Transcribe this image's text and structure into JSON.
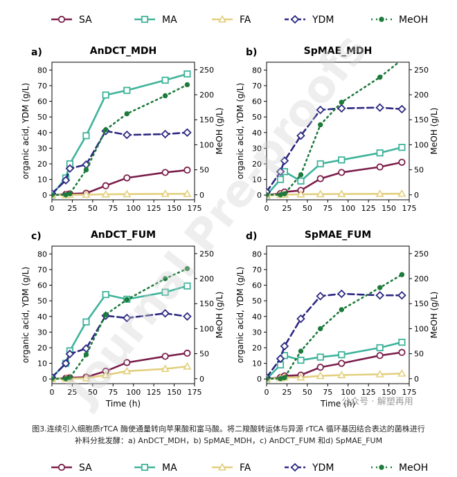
{
  "legend": {
    "items": [
      {
        "key": "SA",
        "label": "SA",
        "color": "#7a1d4a",
        "marker": "circle",
        "dash": "solid"
      },
      {
        "key": "MA",
        "label": "MA",
        "color": "#3db39a",
        "marker": "square",
        "dash": "solid"
      },
      {
        "key": "FA",
        "label": "FA",
        "color": "#e2cf7d",
        "marker": "triangle",
        "dash": "solid"
      },
      {
        "key": "YDM",
        "label": "YDM",
        "color": "#2b2780",
        "marker": "diamond",
        "dash": "dash"
      },
      {
        "key": "MeOH",
        "label": "MeOH",
        "color": "#1c7a3a",
        "marker": "dot",
        "dash": "dot"
      }
    ]
  },
  "watermark": {
    "text": "Journal Pre-proofs"
  },
  "wechat": {
    "text": "公众号 · 解塑再用"
  },
  "caption": {
    "line1": "图3.连续引入细胞质rTCA 酶使通量转向苹果酸和富马酸。将二羧酸转运体与异源 rTCA 循环基因结合表达的菌株进行",
    "line2": "补料分批发酵：a) AnDCT_MDH，b) SpMAE_MDH，c) AnDCT_FUM 和d) SpMAE_FUM"
  },
  "chart_data": [
    {
      "type": "line",
      "panel": "a)",
      "title": "AnDCT_MDH",
      "xlabel": "",
      "ylabel": "organic acid, YDM (g/L)",
      "y2label": "MeOH (g/L)",
      "xlim": [
        0,
        175
      ],
      "ylim": [
        -3,
        85
      ],
      "y2lim": [
        -10,
        265
      ],
      "xticks": [
        0,
        25,
        50,
        75,
        100,
        125,
        150,
        175
      ],
      "yticks": [
        0,
        10,
        20,
        30,
        40,
        50,
        60,
        70,
        80
      ],
      "y2ticks": [
        0,
        50,
        100,
        150,
        200,
        250
      ],
      "series": [
        {
          "name": "SA",
          "x": [
            0,
            17,
            22,
            42,
            66,
            92,
            139,
            166
          ],
          "values": [
            0,
            0.5,
            0.8,
            1.2,
            6,
            11,
            14.5,
            16
          ]
        },
        {
          "name": "MA",
          "x": [
            0,
            17,
            22,
            42,
            66,
            92,
            139,
            166
          ],
          "values": [
            0,
            11,
            20,
            38,
            64,
            67,
            73.5,
            77.5
          ]
        },
        {
          "name": "FA",
          "x": [
            0,
            17,
            22,
            42,
            66,
            92,
            139,
            166
          ],
          "values": [
            0,
            0,
            0.2,
            0.3,
            0.5,
            0.6,
            0.8,
            0.8
          ]
        },
        {
          "name": "YDM",
          "x": [
            0,
            17,
            22,
            42,
            66,
            92,
            139,
            166
          ],
          "values": [
            1,
            9.5,
            17,
            19.5,
            41,
            38.5,
            39,
            40
          ]
        },
        {
          "name": "MeOH",
          "axis": "y2",
          "x": [
            0,
            17,
            22,
            42,
            66,
            92,
            139,
            166
          ],
          "values": [
            0,
            0,
            2,
            50,
            130,
            162,
            198,
            220
          ]
        }
      ]
    },
    {
      "type": "line",
      "panel": "b)",
      "title": "SpMAE_MDH",
      "xlabel": "",
      "ylabel": "organic acid, YDM (g/L)",
      "y2label": "MeOH (g/L)",
      "xlim": [
        0,
        175
      ],
      "ylim": [
        -3,
        85
      ],
      "y2lim": [
        -10,
        265
      ],
      "xticks": [
        0,
        25,
        50,
        75,
        100,
        125,
        150,
        175
      ],
      "yticks": [
        0,
        10,
        20,
        30,
        40,
        50,
        60,
        70,
        80
      ],
      "y2ticks": [
        0,
        50,
        100,
        150,
        200,
        250
      ],
      "series": [
        {
          "name": "SA",
          "x": [
            0,
            17,
            22,
            42,
            66,
            92,
            139,
            166
          ],
          "values": [
            0,
            1,
            2,
            3,
            10.5,
            14.5,
            18,
            21
          ]
        },
        {
          "name": "MA",
          "x": [
            0,
            17,
            22,
            42,
            66,
            92,
            139,
            166
          ],
          "values": [
            0,
            10,
            15,
            9,
            20,
            22.5,
            27,
            30.5
          ]
        },
        {
          "name": "FA",
          "x": [
            0,
            17,
            22,
            42,
            66,
            92,
            139,
            166
          ],
          "values": [
            0,
            0.2,
            0.3,
            0.5,
            0.6,
            0.7,
            0.8,
            0.9
          ]
        },
        {
          "name": "YDM",
          "x": [
            0,
            17,
            22,
            42,
            66,
            92,
            139,
            166
          ],
          "values": [
            2,
            15,
            22,
            38,
            54.5,
            55.5,
            56,
            55
          ]
        },
        {
          "name": "MeOH",
          "axis": "y2",
          "x": [
            0,
            17,
            22,
            42,
            66,
            92,
            139,
            166
          ],
          "values": [
            0,
            0,
            2,
            40,
            140,
            185,
            235,
            270
          ]
        }
      ]
    },
    {
      "type": "line",
      "panel": "c)",
      "title": "AnDCT_FUM",
      "xlabel": "Time (h)",
      "ylabel": "organic acid, YDM (g/L)",
      "y2label": "MeOH (g/L)",
      "xlim": [
        0,
        175
      ],
      "ylim": [
        -3,
        85
      ],
      "y2lim": [
        -10,
        265
      ],
      "xticks": [
        0,
        25,
        50,
        75,
        100,
        125,
        150,
        175
      ],
      "yticks": [
        0,
        10,
        20,
        30,
        40,
        50,
        60,
        70,
        80
      ],
      "y2ticks": [
        0,
        50,
        100,
        150,
        200,
        250
      ],
      "series": [
        {
          "name": "SA",
          "x": [
            0,
            17,
            22,
            42,
            66,
            92,
            139,
            166
          ],
          "values": [
            0,
            0.5,
            0.8,
            1.2,
            5,
            10.5,
            14.5,
            16.5
          ]
        },
        {
          "name": "MA",
          "x": [
            0,
            17,
            22,
            42,
            66,
            92,
            139,
            166
          ],
          "values": [
            1,
            10,
            18,
            36.5,
            54,
            51,
            55.5,
            59.5
          ]
        },
        {
          "name": "FA",
          "x": [
            0,
            17,
            22,
            42,
            66,
            92,
            139,
            166
          ],
          "values": [
            0,
            0.2,
            0.3,
            0.5,
            2.5,
            5,
            6.5,
            8
          ]
        },
        {
          "name": "YDM",
          "x": [
            0,
            17,
            22,
            42,
            66,
            92,
            139,
            166
          ],
          "values": [
            1,
            10,
            16,
            19.5,
            40.5,
            39,
            42,
            40
          ]
        },
        {
          "name": "MeOH",
          "axis": "y2",
          "x": [
            0,
            17,
            22,
            42,
            66,
            92,
            139,
            166
          ],
          "values": [
            0,
            0,
            2,
            48,
            128,
            158,
            200,
            220
          ]
        }
      ]
    },
    {
      "type": "line",
      "panel": "d)",
      "title": "SpMAE_FUM",
      "xlabel": "Time (h)",
      "ylabel": "organic acid, YDM (g/L)",
      "y2label": "MeOH (g/L)",
      "xlim": [
        0,
        175
      ],
      "ylim": [
        -3,
        85
      ],
      "y2lim": [
        -10,
        265
      ],
      "xticks": [
        0,
        25,
        50,
        75,
        100,
        125,
        150,
        175
      ],
      "yticks": [
        0,
        10,
        20,
        30,
        40,
        50,
        60,
        70,
        80
      ],
      "y2ticks": [
        0,
        50,
        100,
        150,
        200,
        250
      ],
      "series": [
        {
          "name": "SA",
          "x": [
            0,
            17,
            22,
            42,
            66,
            92,
            139,
            166
          ],
          "values": [
            0,
            1,
            2,
            2.5,
            7.5,
            10,
            15,
            17
          ]
        },
        {
          "name": "MA",
          "x": [
            0,
            17,
            22,
            42,
            66,
            92,
            139,
            166
          ],
          "values": [
            0,
            9,
            15,
            12,
            14,
            15.5,
            20,
            23.5
          ]
        },
        {
          "name": "FA",
          "x": [
            0,
            17,
            22,
            42,
            66,
            92,
            139,
            166
          ],
          "values": [
            0,
            0.5,
            1,
            1,
            2,
            2.5,
            3,
            3.5
          ]
        },
        {
          "name": "YDM",
          "x": [
            0,
            17,
            22,
            42,
            66,
            92,
            139,
            166
          ],
          "values": [
            1,
            13,
            21,
            38.5,
            53,
            54.5,
            53.5,
            53.5
          ]
        },
        {
          "name": "MeOH",
          "axis": "y2",
          "x": [
            0,
            17,
            22,
            42,
            66,
            92,
            139,
            166
          ],
          "values": [
            0,
            0,
            2,
            55,
            100,
            138,
            182,
            208
          ]
        }
      ]
    }
  ]
}
